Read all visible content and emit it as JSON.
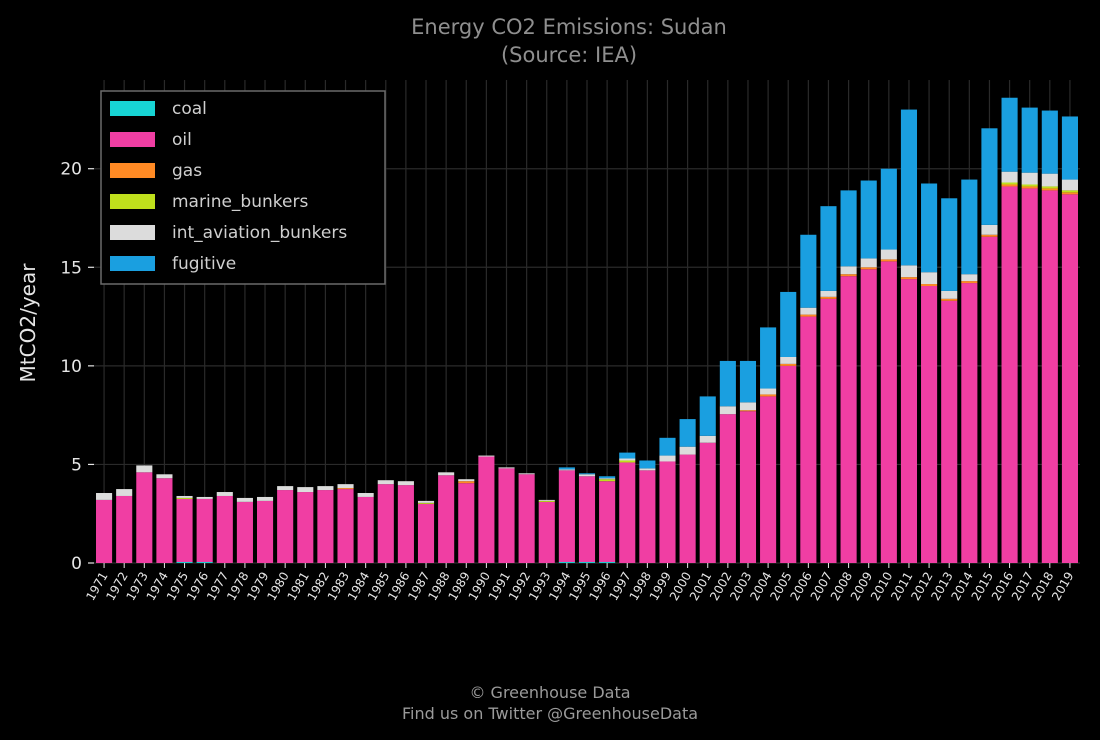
{
  "chart_data": {
    "type": "bar",
    "stacked": true,
    "title": "Energy CO2 Emissions: Sudan",
    "subtitle": "(Source: IEA)",
    "xlabel": "",
    "ylabel": "MtCO2/year",
    "ylim": [
      0,
      24.5
    ],
    "yticks": [
      0,
      5,
      10,
      15,
      20
    ],
    "grid": true,
    "legend_position": "top-left",
    "categories": [
      "1971",
      "1972",
      "1973",
      "1974",
      "1975",
      "1976",
      "1977",
      "1978",
      "1979",
      "1980",
      "1981",
      "1982",
      "1983",
      "1984",
      "1985",
      "1986",
      "1987",
      "1988",
      "1989",
      "1990",
      "1991",
      "1992",
      "1993",
      "1994",
      "1995",
      "1996",
      "1997",
      "1998",
      "1999",
      "2000",
      "2001",
      "2002",
      "2003",
      "2004",
      "2005",
      "2006",
      "2007",
      "2008",
      "2009",
      "2010",
      "2011",
      "2012",
      "2013",
      "2014",
      "2015",
      "2016",
      "2017",
      "2018",
      "2019"
    ],
    "series": [
      {
        "name": "coal",
        "color": "#17d4d4",
        "values": [
          0,
          0,
          0,
          0,
          0.05,
          0.05,
          0,
          0,
          0,
          0,
          0,
          0,
          0,
          0,
          0,
          0,
          0,
          0,
          0,
          0,
          0,
          0,
          0,
          0.05,
          0.05,
          0.05,
          0,
          0,
          0,
          0,
          0,
          0,
          0,
          0,
          0,
          0,
          0,
          0,
          0,
          0,
          0,
          0,
          0,
          0,
          0,
          0,
          0,
          0,
          0
        ]
      },
      {
        "name": "oil",
        "color": "#f03ea3",
        "values": [
          3.2,
          3.4,
          4.6,
          4.3,
          3.2,
          3.2,
          3.4,
          3.1,
          3.15,
          3.7,
          3.6,
          3.7,
          3.75,
          3.35,
          4.0,
          3.95,
          3.0,
          4.45,
          4.05,
          5.4,
          4.8,
          4.5,
          3.1,
          4.65,
          4.35,
          4.1,
          5.1,
          4.7,
          5.15,
          5.5,
          6.1,
          7.55,
          7.7,
          8.45,
          10.0,
          12.5,
          13.4,
          14.55,
          14.9,
          15.3,
          14.4,
          14.05,
          13.3,
          14.2,
          16.55,
          19.1,
          19.0,
          18.9,
          18.7
        ]
      },
      {
        "name": "gas",
        "color": "#ff8a24",
        "values": [
          0,
          0,
          0,
          0,
          0,
          0,
          0,
          0,
          0,
          0,
          0,
          0,
          0.05,
          0,
          0,
          0,
          0,
          0,
          0.1,
          0,
          0,
          0,
          0,
          0,
          0,
          0,
          0,
          0,
          0,
          0,
          0,
          0,
          0.05,
          0.1,
          0.1,
          0.1,
          0.1,
          0.1,
          0.1,
          0.1,
          0.1,
          0.1,
          0.1,
          0.1,
          0.1,
          0.1,
          0.1,
          0.1,
          0.1
        ]
      },
      {
        "name": "marine_bunkers",
        "color": "#bfe01c",
        "values": [
          0,
          0,
          0,
          0,
          0.05,
          0,
          0,
          0,
          0,
          0,
          0,
          0,
          0,
          0,
          0,
          0,
          0.05,
          0,
          0,
          0,
          0,
          0,
          0.05,
          0,
          0,
          0.1,
          0.1,
          0,
          0,
          0,
          0,
          0,
          0,
          0,
          0,
          0,
          0,
          0,
          0,
          0,
          0,
          0,
          0,
          0,
          0,
          0.1,
          0.1,
          0.1,
          0.1
        ]
      },
      {
        "name": "int_aviation_bunkers",
        "color": "#dcdcdc",
        "values": [
          0.35,
          0.35,
          0.35,
          0.2,
          0.1,
          0.1,
          0.2,
          0.2,
          0.2,
          0.2,
          0.25,
          0.2,
          0.2,
          0.2,
          0.2,
          0.2,
          0.1,
          0.15,
          0.1,
          0.05,
          0.05,
          0.05,
          0.05,
          0.05,
          0.1,
          0.05,
          0.1,
          0.1,
          0.3,
          0.4,
          0.35,
          0.4,
          0.4,
          0.3,
          0.35,
          0.35,
          0.3,
          0.4,
          0.45,
          0.5,
          0.6,
          0.6,
          0.4,
          0.35,
          0.5,
          0.55,
          0.6,
          0.65,
          0.55
        ]
      },
      {
        "name": "fugitive",
        "color": "#1a9fe0",
        "values": [
          0,
          0,
          0,
          0,
          0,
          0,
          0,
          0,
          0,
          0,
          0,
          0,
          0,
          0,
          0,
          0,
          0,
          0,
          0,
          0,
          0,
          0,
          0,
          0.1,
          0.05,
          0.1,
          0.3,
          0.4,
          0.9,
          1.4,
          2.0,
          2.3,
          2.1,
          3.1,
          3.3,
          3.7,
          4.3,
          3.85,
          3.95,
          4.1,
          7.9,
          4.5,
          4.7,
          4.8,
          4.9,
          3.75,
          3.3,
          3.2,
          3.2
        ]
      }
    ]
  },
  "footer": {
    "line1": "© Greenhouse Data",
    "line2": "Find us on Twitter @GreenhouseData"
  }
}
